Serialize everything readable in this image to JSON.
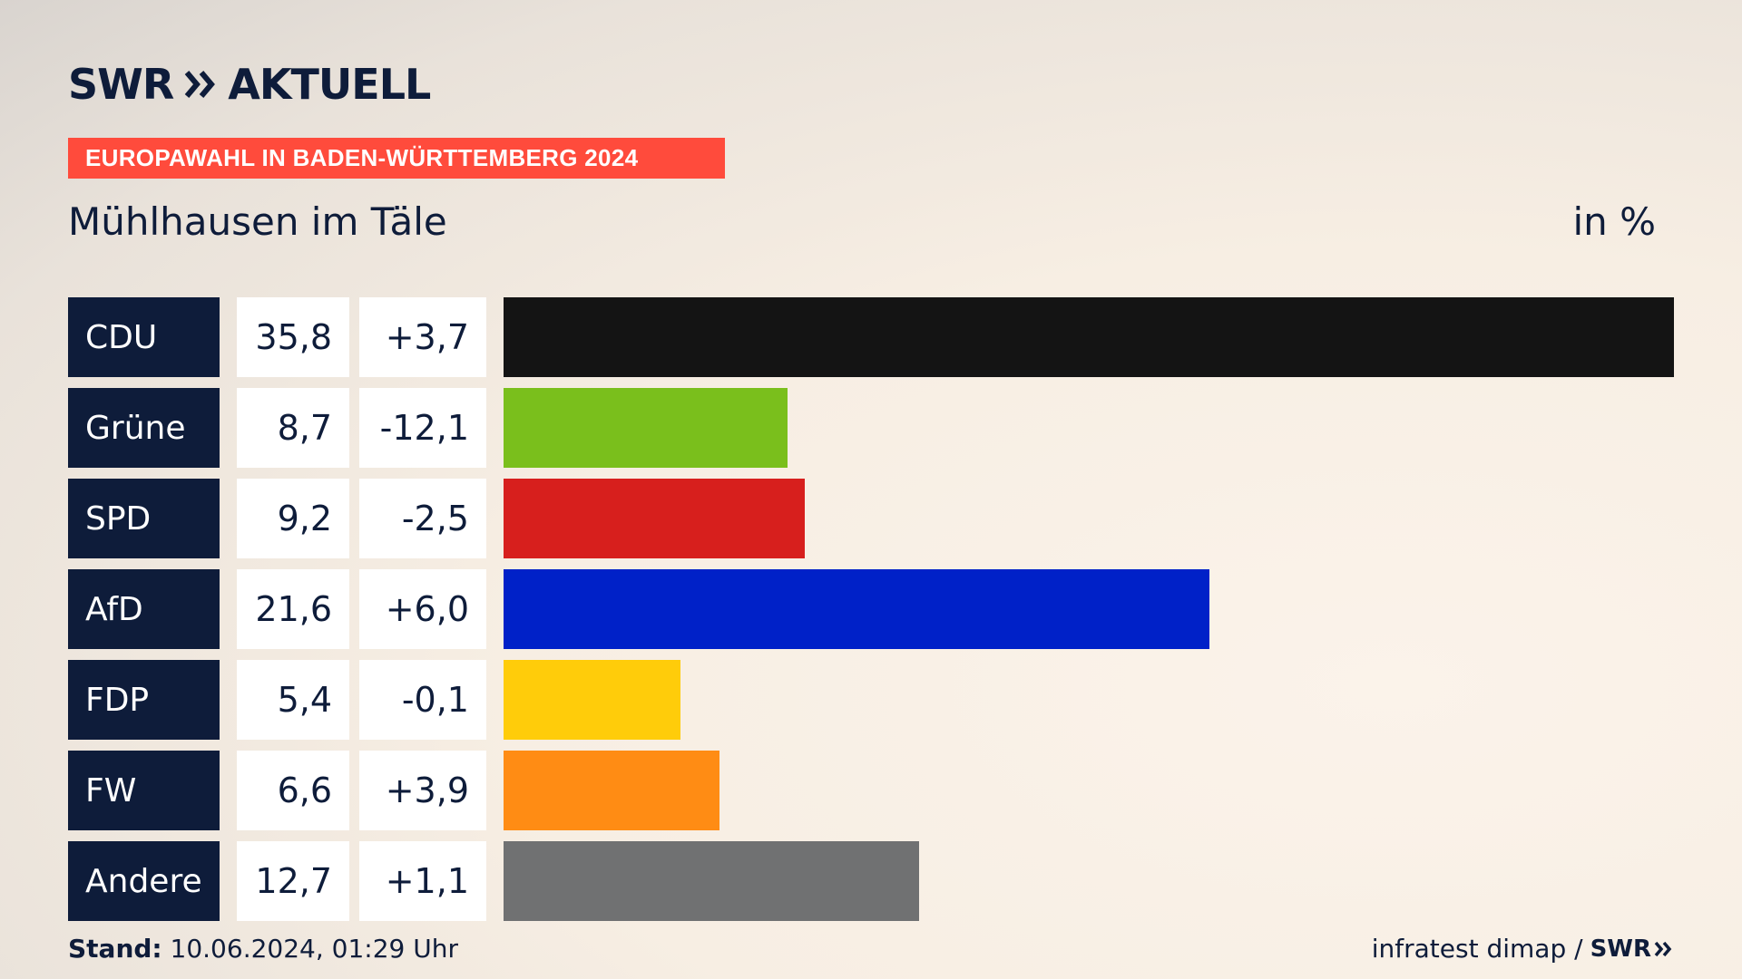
{
  "header": {
    "logo_text": "SWR",
    "logo_suffix": "AKTUELL",
    "banner": "EUROPAWAHL IN BADEN-WÜRTTEMBERG 2024",
    "subtitle": "Mühlhausen im Täle",
    "unit": "in %"
  },
  "chart_data": {
    "type": "bar",
    "orientation": "horizontal",
    "title": "Mühlhausen im Täle",
    "unit": "in %",
    "categories": [
      "CDU",
      "Grüne",
      "SPD",
      "AfD",
      "FDP",
      "FW",
      "Andere"
    ],
    "values": [
      35.8,
      8.7,
      9.2,
      21.6,
      5.4,
      6.6,
      12.7
    ],
    "value_labels": [
      "35,8",
      "8,7",
      "9,2",
      "21,6",
      "5,4",
      "6,6",
      "12,7"
    ],
    "change_labels": [
      "+3,7",
      "-12,1",
      "-2,5",
      "+6,0",
      "-0,1",
      "+3,9",
      "+1,1"
    ],
    "colors": [
      "#141414",
      "#7abf1c",
      "#d71f1d",
      "#0021c8",
      "#ffcc0a",
      "#ff8c14",
      "#707172"
    ],
    "xlim": [
      0,
      35.8
    ]
  },
  "footer": {
    "stand_label": "Stand:",
    "stand_value": "10.06.2024, 01:29 Uhr",
    "source": "infratest dimap /",
    "source_logo": "SWR"
  }
}
